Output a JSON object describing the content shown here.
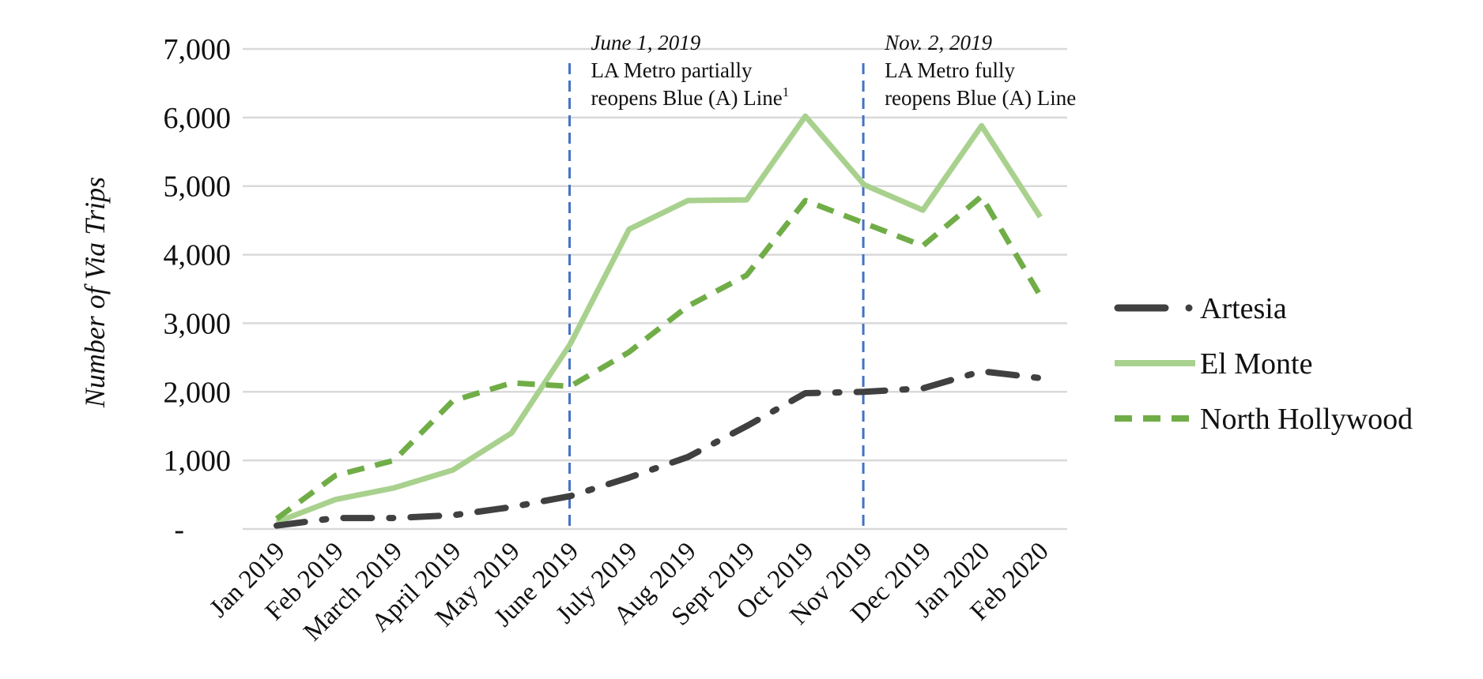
{
  "chart_data": {
    "type": "line",
    "title": "",
    "xlabel": "",
    "ylabel": "Number of Via Trips",
    "categories": [
      "Jan 2019",
      "Feb 2019",
      "March 2019",
      "April 2019",
      "May 2019",
      "June 2019",
      "July 2019",
      "Aug 2019",
      "Sept 2019",
      "Oct 2019",
      "Nov 2019",
      "Dec 2019",
      "Jan 2020",
      "Feb 2020"
    ],
    "ylim": [
      0,
      7000
    ],
    "yticks": [
      0,
      1000,
      2000,
      3000,
      4000,
      5000,
      6000,
      7000
    ],
    "ytick_labels": [
      "-",
      "1,000",
      "2,000",
      "3,000",
      "4,000",
      "5,000",
      "6,000",
      "7,000"
    ],
    "grid": true,
    "legend_position": "right",
    "series": [
      {
        "name": "Artesia",
        "style": "dash-dot",
        "color": "#404040",
        "values": [
          50,
          160,
          160,
          200,
          320,
          480,
          750,
          1050,
          1500,
          1980,
          2000,
          2050,
          2300,
          2200
        ]
      },
      {
        "name": "El Monte",
        "style": "solid",
        "color": "#a9d18e",
        "values": [
          100,
          430,
          600,
          860,
          1400,
          2700,
          4370,
          4790,
          4800,
          6020,
          5020,
          4650,
          5880,
          4550
        ]
      },
      {
        "name": "North Hollywood",
        "style": "dashed",
        "color": "#70ad47",
        "values": [
          150,
          780,
          1000,
          1870,
          2130,
          2080,
          2580,
          3250,
          3700,
          4790,
          4460,
          4130,
          4850,
          3400
        ]
      }
    ],
    "annotations": [
      {
        "at_category": "June 2019",
        "line_color": "#4472c4",
        "date": "June 1, 2019",
        "line1": "LA Metro partially",
        "line2": "reopens Blue (A) Line",
        "superscript": "1"
      },
      {
        "at_category": "Nov 2019",
        "line_color": "#4472c4",
        "date": "Nov. 2, 2019",
        "line1": "LA Metro fully",
        "line2": "reopens Blue (A) Line",
        "superscript": ""
      }
    ]
  }
}
